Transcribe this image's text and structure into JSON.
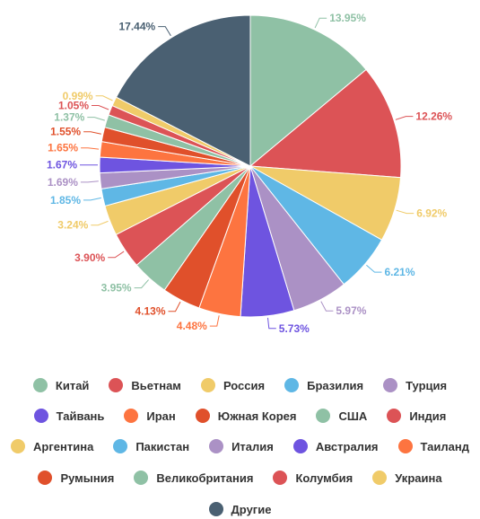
{
  "chart_data": {
    "type": "pie",
    "categories": [
      "Китай",
      "Вьетнам",
      "Россия",
      "Бразилия",
      "Турция",
      "Тайвань",
      "Иран",
      "Южная Корея",
      "США",
      "Индия",
      "Аргентина",
      "Пакистан",
      "Италия",
      "Австралия",
      "Таиланд",
      "Румыния",
      "Великобритания",
      "Колумбия",
      "Украина",
      "Другие"
    ],
    "values": [
      13.95,
      12.26,
      6.92,
      6.21,
      5.97,
      5.73,
      4.48,
      4.13,
      3.95,
      3.9,
      3.24,
      1.85,
      1.69,
      1.67,
      1.65,
      1.55,
      1.37,
      1.05,
      0.99,
      17.44
    ],
    "labels": [
      "13.95%",
      "12.26%",
      "6.92%",
      "6.21%",
      "5.97%",
      "5.73%",
      "4.48%",
      "4.13%",
      "3.95%",
      "3.90%",
      "3.24%",
      "1.85%",
      "1.69%",
      "1.67%",
      "1.65%",
      "1.55%",
      "1.37%",
      "1.05%",
      "0.99%",
      "17.44%"
    ],
    "colors": [
      "#8fc1a5",
      "#dc5356",
      "#f0cb69",
      "#5fb7e5",
      "#ab91c5",
      "#6e54e0",
      "#fd7440",
      "#e0502b",
      "#8fc1a5",
      "#dc5356",
      "#f0cb69",
      "#5fb7e5",
      "#ab91c5",
      "#6e54e0",
      "#fd7440",
      "#e0502b",
      "#8fc1a5",
      "#dc5356",
      "#f0cb69",
      "#4a6072"
    ],
    "legend_position": "bottom",
    "grid": false
  }
}
